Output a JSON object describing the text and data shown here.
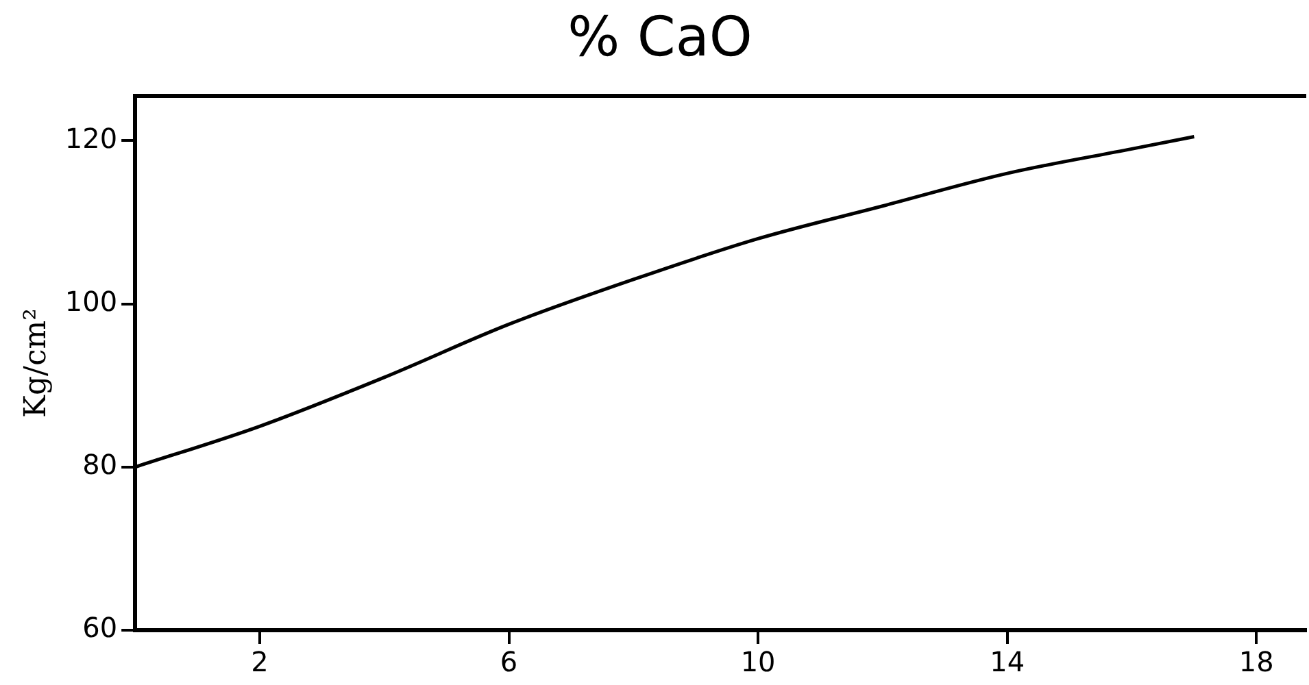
{
  "chart_data": {
    "type": "line",
    "title": "% CaO",
    "ylabel": "Kg/cm²",
    "x": [
      0,
      2,
      4,
      6,
      8,
      10,
      12,
      14,
      16,
      17
    ],
    "series": [
      {
        "color": "#000000",
        "values": [
          80,
          85,
          91,
          97.5,
          103,
          108,
          112,
          116,
          119,
          120.5
        ]
      }
    ],
    "xlim": [
      0,
      18.8
    ],
    "xticks": [
      2,
      6,
      10,
      14,
      18
    ],
    "ylim": [
      60,
      125.5
    ],
    "yticks": [
      60,
      80,
      100,
      120
    ],
    "grid": false,
    "legend": false,
    "marker": "none",
    "line_style": "solid"
  }
}
